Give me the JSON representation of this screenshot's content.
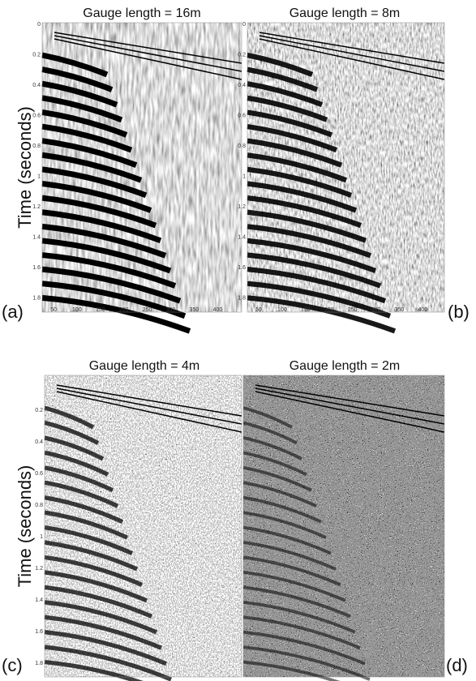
{
  "panels": [
    {
      "title": "Gauge length = 16m",
      "label": "(a)",
      "axis_title": "Time (seconds)",
      "yticks": [
        "0",
        "0.2",
        "0.4",
        "0.6",
        "0.8",
        "1",
        "1.2",
        "1.4",
        "1.6",
        "1.8"
      ],
      "xticks": [
        "50",
        "100",
        "150",
        "200",
        "250",
        "300",
        "350",
        "400"
      ]
    },
    {
      "title": "Gauge length = 8m",
      "label": "(b)",
      "yticks": [
        "0",
        "0.2",
        "0.4",
        "0.6",
        "0.8",
        "1",
        "1.2",
        "1.4",
        "1.6",
        "1.8"
      ],
      "xticks": [
        "50",
        "100",
        "150",
        "200",
        "250",
        "300",
        "350",
        "400"
      ]
    },
    {
      "title": "Gauge length = 4m",
      "label": "(c)",
      "axis_title": "Time (seconds)",
      "yticks": [
        "0.2",
        "0.4",
        "0.6",
        "0.8",
        "1",
        "1.2",
        "1.4",
        "1.6",
        "1.8"
      ]
    },
    {
      "title": "Gauge length = 2m",
      "label": "(d)"
    }
  ]
}
